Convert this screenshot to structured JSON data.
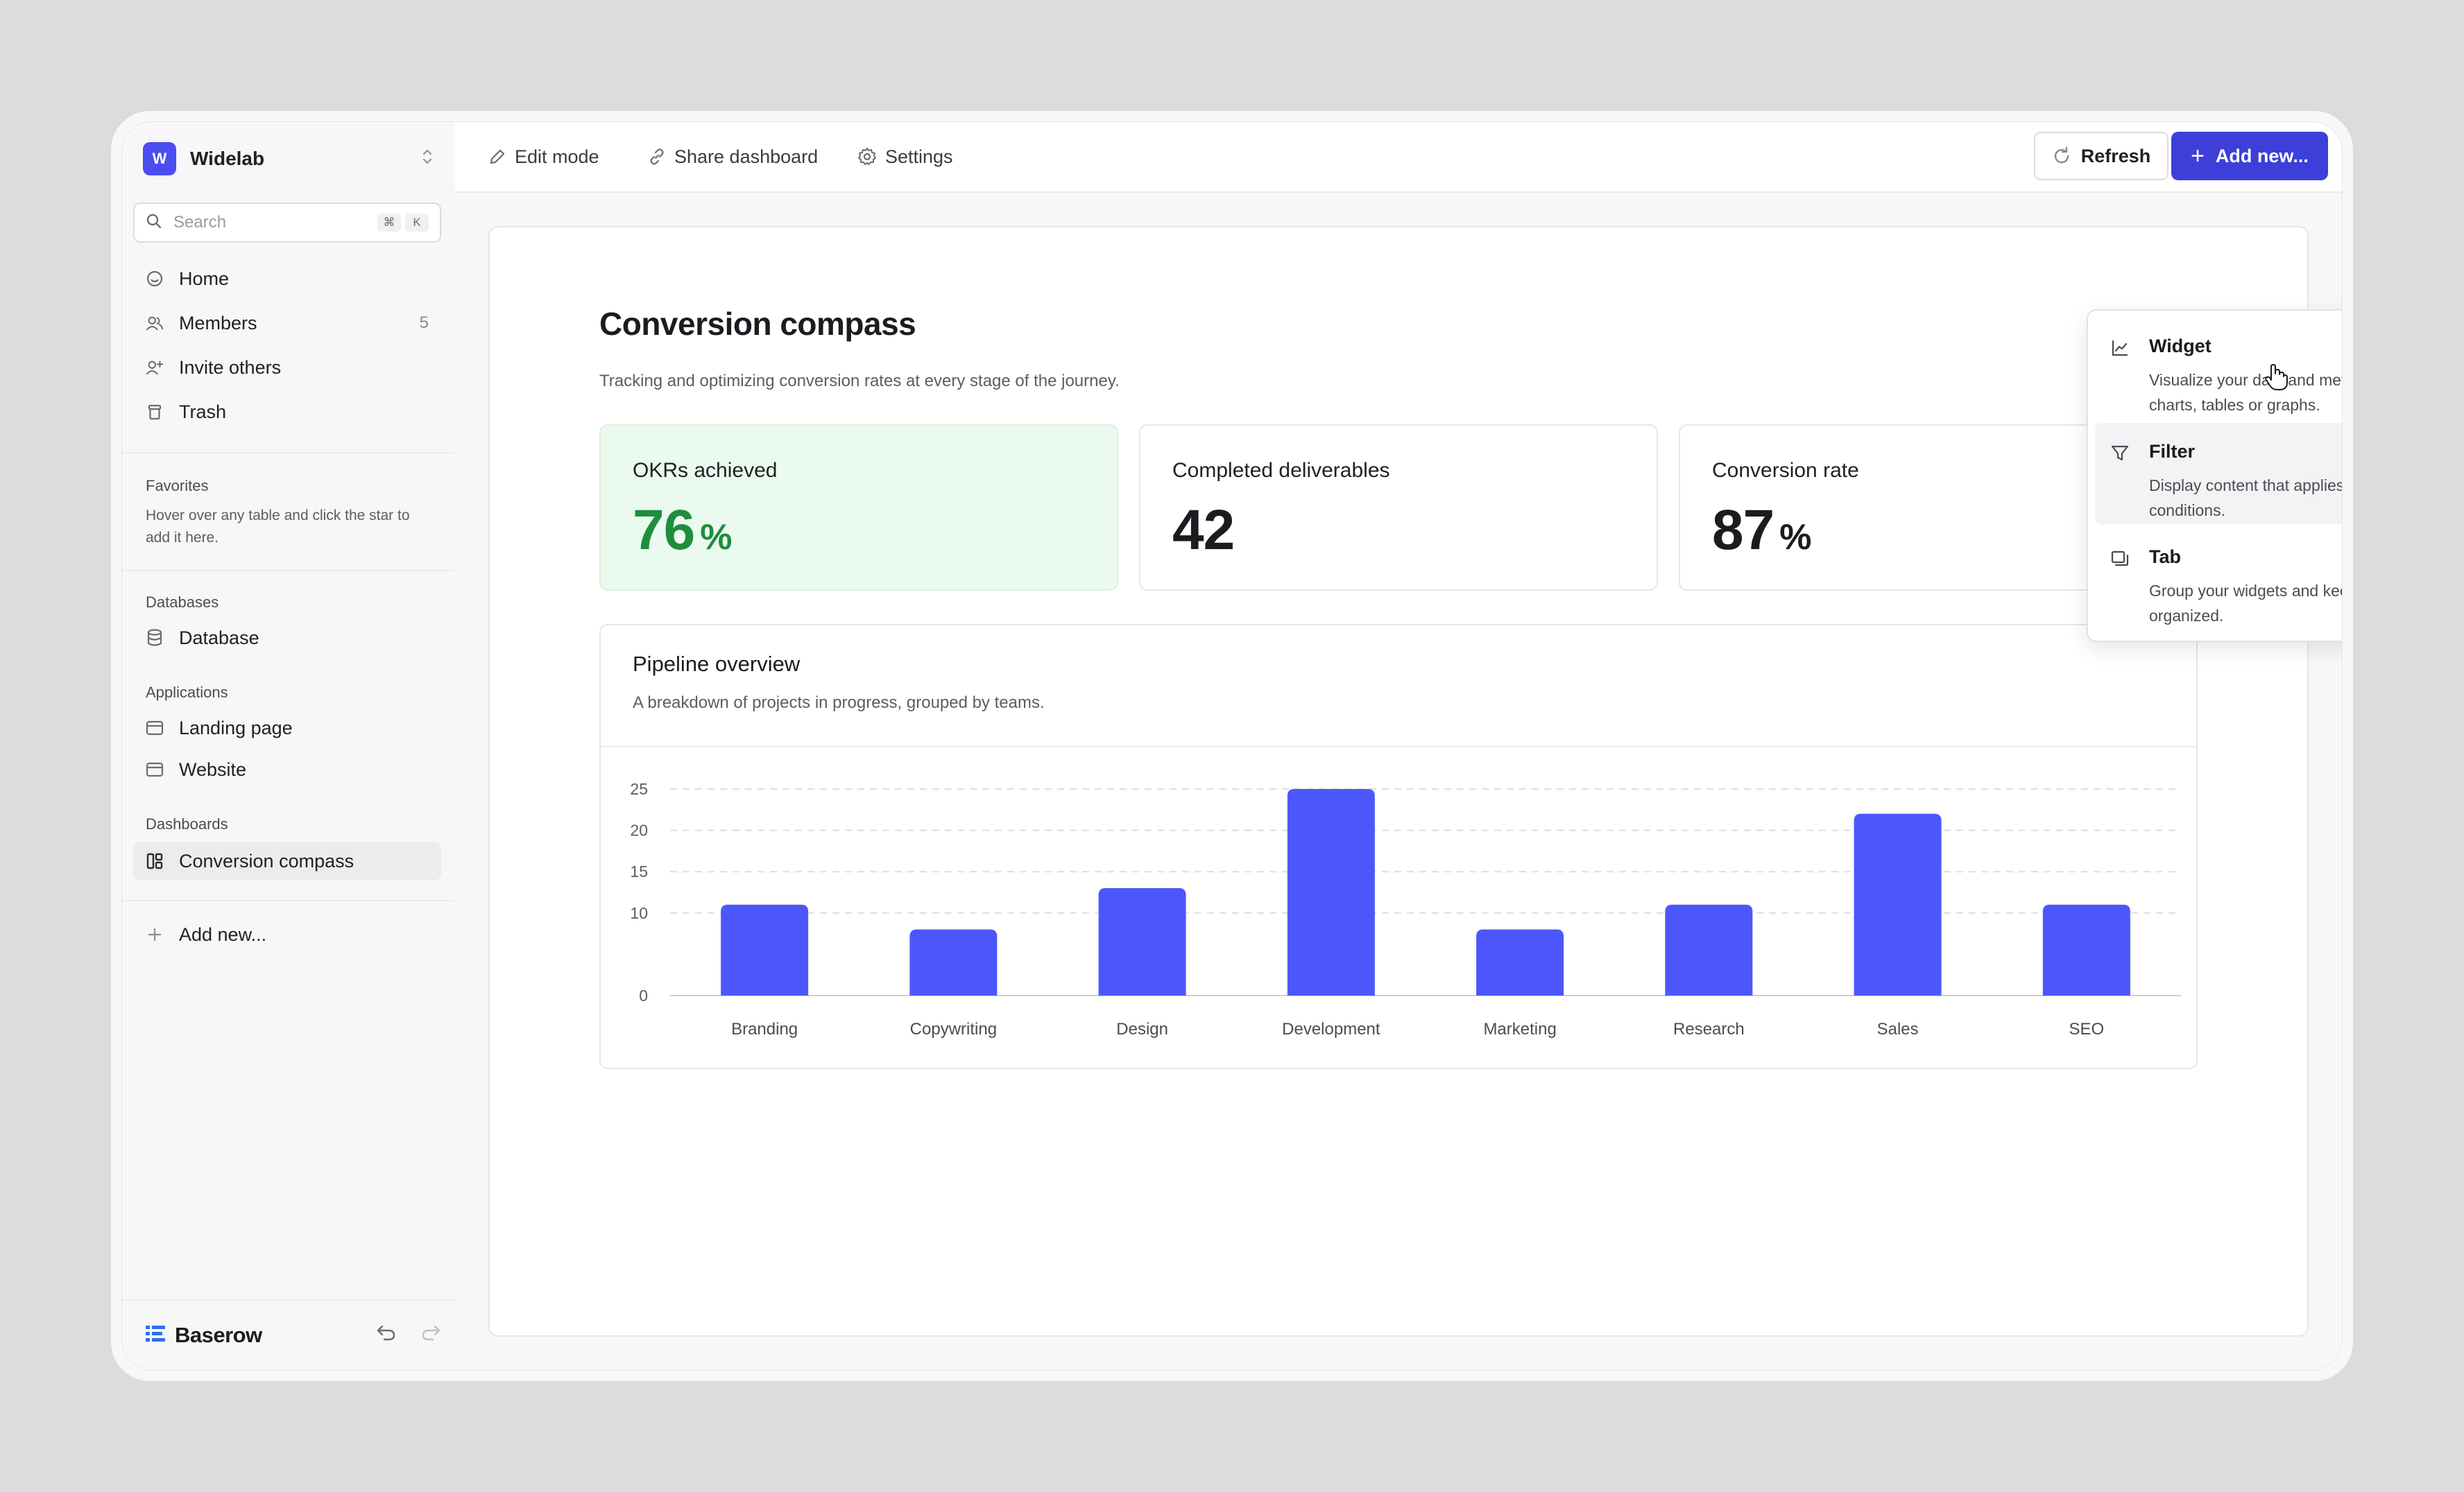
{
  "workspace": {
    "badge": "W",
    "name": "Widelab"
  },
  "search": {
    "placeholder": "Search",
    "shortcut_keys": [
      "⌘",
      "K"
    ]
  },
  "sidebar": {
    "nav": [
      {
        "label": "Home",
        "icon": "smile-icon"
      },
      {
        "label": "Members",
        "icon": "users-icon",
        "count": "5"
      },
      {
        "label": "Invite others",
        "icon": "user-plus-icon"
      },
      {
        "label": "Trash",
        "icon": "trash-icon"
      }
    ],
    "favorites": {
      "title": "Favorites",
      "help": "Hover over any table and click the star to add it here."
    },
    "databases": {
      "title": "Databases",
      "items": [
        "Database"
      ]
    },
    "applications": {
      "title": "Applications",
      "items": [
        "Landing page",
        "Website"
      ]
    },
    "dashboards": {
      "title": "Dashboards",
      "items": [
        "Conversion compass"
      ]
    },
    "add_new": "Add new..."
  },
  "footer": {
    "brand": "Baserow"
  },
  "topbar": {
    "edit_mode": "Edit mode",
    "share": "Share dashboard",
    "settings": "Settings",
    "refresh": "Refresh",
    "add_new": "Add new..."
  },
  "dashboard": {
    "title": "Conversion compass",
    "description": "Tracking and optimizing conversion rates at every stage of the journey.",
    "kpis": [
      {
        "label": "OKRs achieved",
        "value": "76",
        "unit": "%"
      },
      {
        "label": "Completed deliverables",
        "value": "42",
        "unit": ""
      },
      {
        "label": "Conversion rate",
        "value": "87",
        "unit": "%"
      }
    ],
    "chart": {
      "title": "Pipeline overview",
      "description": "A breakdown of projects in progress, grouped by teams."
    }
  },
  "chart_data": {
    "type": "bar",
    "categories": [
      "Branding",
      "Copywriting",
      "Design",
      "Development",
      "Marketing",
      "Research",
      "Sales",
      "SEO"
    ],
    "values": [
      11,
      8,
      13,
      25,
      8,
      11,
      22,
      11
    ],
    "ylim": [
      0,
      25
    ],
    "yticks": [
      0,
      10,
      15,
      20,
      25
    ],
    "grid": true,
    "bar_color": "#4c57fb"
  },
  "dropdown": {
    "items": [
      {
        "title": "Widget",
        "description": "Visualize your data and metrics with charts, tables or graphs.",
        "icon": "line-chart-icon"
      },
      {
        "title": "Filter",
        "description": "Display content that applies to your conditions.",
        "icon": "filter-icon"
      },
      {
        "title": "Tab",
        "description": "Group your widgets and keep them organized.",
        "icon": "tabs-icon"
      }
    ]
  },
  "colors": {
    "accent": "#3d3fd8",
    "brand_badge": "#4a4ef0",
    "positive": "#1e8e3e"
  }
}
